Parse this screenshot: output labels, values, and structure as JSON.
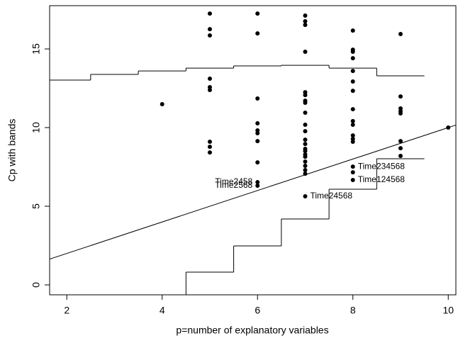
{
  "chart_data": {
    "type": "scatter",
    "x_label": "p=number of explanatory variables",
    "y_label": "Cp with bands",
    "xlim": [
      1.64,
      10.16
    ],
    "ylim": [
      -0.63,
      17.75
    ],
    "xticks": [
      2,
      4,
      6,
      8,
      10
    ],
    "yticks": [
      0,
      5,
      10,
      15
    ],
    "series": [
      {
        "color": "#000000",
        "x": [
          4,
          5,
          5,
          5,
          5,
          5,
          5,
          5,
          5,
          5,
          6,
          6,
          6,
          6,
          6,
          6,
          6,
          6,
          6,
          6,
          7,
          7,
          7,
          7,
          7,
          7,
          7,
          7,
          7,
          7,
          7,
          7,
          7,
          7,
          7,
          7,
          7,
          7,
          7,
          7,
          7,
          7,
          8,
          8,
          8,
          8,
          8,
          8,
          8,
          8,
          8,
          8,
          8,
          8,
          8,
          8,
          8,
          8,
          9,
          9,
          9,
          9,
          9,
          9,
          9,
          9,
          10
        ],
        "values": [
          11.49,
          17.25,
          16.26,
          15.86,
          13.11,
          12.57,
          12.39,
          9.1,
          8.78,
          8.42,
          17.25,
          15.99,
          11.85,
          10.27,
          9.82,
          9.64,
          9.14,
          7.79,
          6.53,
          6.31,
          17.12,
          16.76,
          16.53,
          14.82,
          12.25,
          12.07,
          11.71,
          11.58,
          10.95,
          10.18,
          9.77,
          9.23,
          8.96,
          8.65,
          8.51,
          8.29,
          8.15,
          7.84,
          7.57,
          7.3,
          7.07,
          5.63,
          16.17,
          14.95,
          14.82,
          14.41,
          13.6,
          12.93,
          12.34,
          11.17,
          10.41,
          10.18,
          9.5,
          9.28,
          9.1,
          7.52,
          7.16,
          6.67,
          15.95,
          11.98,
          11.22,
          11.04,
          10.9,
          9.14,
          8.69,
          8.2,
          10
        ]
      }
    ],
    "bands": [
      {
        "color": "#000000",
        "edges": [
          1.5,
          2.5,
          3.5,
          4.5,
          5.5,
          6.5,
          7.5,
          8.5,
          9.5
        ],
        "values": [
          13.02,
          13.38,
          13.6,
          13.78,
          13.92,
          13.96,
          13.78,
          13.29
        ]
      },
      {
        "color": "#000000",
        "edges": [
          3.5,
          4.5,
          5.5,
          6.5,
          7.5,
          8.5,
          9.5
        ],
        "values": [
          -1,
          0.81,
          2.48,
          4.19,
          6.08,
          8.02
        ]
      }
    ],
    "reference_line": {
      "color": "#000000",
      "x": [
        1.5,
        10.5
      ],
      "values": [
        1.5,
        10.5
      ]
    },
    "annotations": [
      {
        "text": "Time2458",
        "x": 6,
        "y": 6.53,
        "side": "left"
      },
      {
        "text": "Time2568",
        "x": 6,
        "y": 6.31,
        "side": "left"
      },
      {
        "text": "Time24568",
        "x": 7,
        "y": 5.63,
        "side": "right"
      },
      {
        "text": "Time234568",
        "x": 8,
        "y": 7.52,
        "side": "right"
      },
      {
        "text": "Time124568",
        "x": 8,
        "y": 6.67,
        "side": "right"
      }
    ]
  }
}
